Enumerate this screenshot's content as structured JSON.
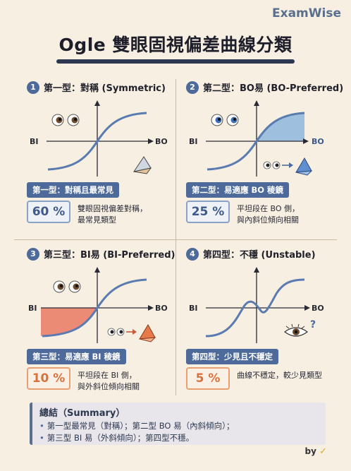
{
  "brand": "ExamWise",
  "title": "Ogle 雙眼固視偏差曲線分類",
  "axis": {
    "x_left": "BI",
    "x_right": "BO"
  },
  "quadrants": [
    {
      "num": "1",
      "title": "第一型：對稱 (Symmetric)",
      "tag": "第一型：對稱且最常見",
      "percent": "60 %",
      "desc_line1": "雙眼固視偏差對稱，",
      "desc_line2": "最常見類型"
    },
    {
      "num": "2",
      "title": "第二型：BO易 (BO-Preferred)",
      "tag": "第二型：易適應 BO 稜鏡",
      "percent": "25 %",
      "desc_line1": "平坦段在 BO 側，",
      "desc_line2": "與內斜位傾向相關"
    },
    {
      "num": "3",
      "title": "第三型：BI易 (BI-Preferred)",
      "tag": "第三型：易適應 BI 稜鏡",
      "percent": "10 %",
      "desc_line1": "平坦段在 BI 側，",
      "desc_line2": "與外斜位傾向相關"
    },
    {
      "num": "4",
      "title": "第四型：不穩 (Unstable)",
      "tag": "第四型：少見且不穩定",
      "percent": "5 %",
      "desc_line1": "曲線不穩定，較少見類型",
      "desc_line2": ""
    }
  ],
  "summary": {
    "title": "總結（Summary）",
    "line1": "第一型最常見（對稱）；第二型 BO 易（內斜傾向）；",
    "line2": "第三型 BI 易（外斜傾向）；第四型不穩。"
  },
  "credit": "by",
  "colors": {
    "accent": "#4d6a9a",
    "blue_fill": "#8fb6de",
    "red_fill": "#e86a50",
    "curve": "#5a7bb0"
  }
}
